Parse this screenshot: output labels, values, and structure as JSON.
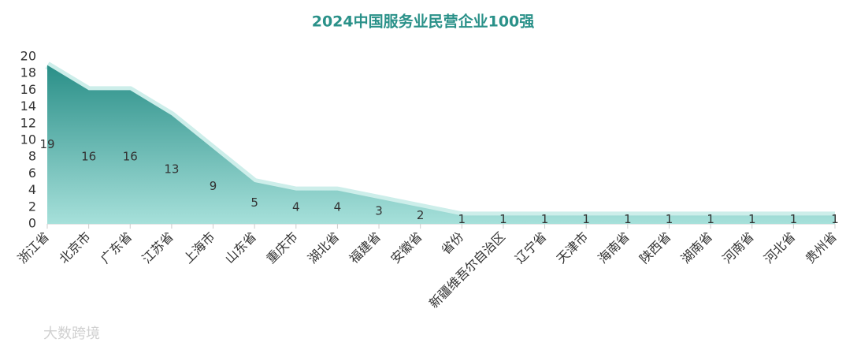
{
  "chart_data": {
    "type": "area",
    "title": "2024中国服务业民营企业100强",
    "categories": [
      "浙江省",
      "北京市",
      "广东省",
      "江苏省",
      "上海市",
      "山东省",
      "重庆市",
      "湖北省",
      "福建省",
      "安徽省",
      "省份",
      "新疆维吾尔自治区",
      "辽宁省",
      "天津市",
      "海南省",
      "陕西省",
      "湖南省",
      "河南省",
      "河北省",
      "贵州省"
    ],
    "values": [
      19,
      16,
      16,
      13,
      9,
      5,
      4,
      4,
      3,
      2,
      1,
      1,
      1,
      1,
      1,
      1,
      1,
      1,
      1,
      1
    ],
    "color": "#2a8f88",
    "ylim": [
      0,
      20
    ],
    "yticks": [
      0,
      2,
      4,
      6,
      8,
      10,
      12,
      14,
      16,
      18,
      20
    ],
    "watermark": "大数跨境"
  }
}
